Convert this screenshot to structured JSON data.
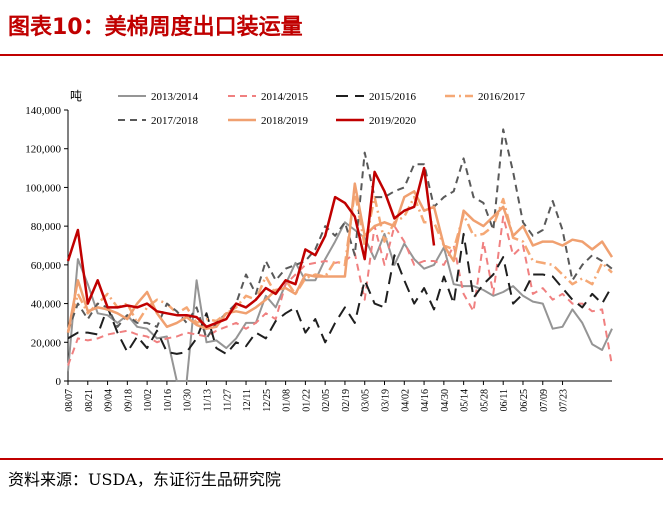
{
  "title": "图表10：美棉周度出口装运量",
  "source": "资料来源：USDA，东证衍生品研究院",
  "chart_data": {
    "type": "line",
    "unit": "吨",
    "ylim": [
      0,
      140000
    ],
    "yticks": [
      0,
      20000,
      40000,
      60000,
      80000,
      100000,
      120000,
      140000
    ],
    "ytick_labels": [
      "0",
      "20,000",
      "40,000",
      "60,000",
      "80,000",
      "100,000",
      "120,000",
      "140,000"
    ],
    "x_tick_labels": [
      "08/07",
      "08/21",
      "09/04",
      "09/18",
      "10/02",
      "10/16",
      "10/30",
      "11/13",
      "11/27",
      "12/11",
      "12/25",
      "01/08",
      "01/22",
      "02/05",
      "02/19",
      "03/05",
      "03/19",
      "04/02",
      "04/16",
      "04/30",
      "05/14",
      "05/28",
      "06/11",
      "06/25",
      "07/09",
      "07/23"
    ],
    "grid": false,
    "legend_position": "top",
    "series": [
      {
        "name": "2013/2014",
        "color": "#959595",
        "dash": "solid",
        "values": [
          5000,
          63000,
          50000,
          35000,
          34000,
          30000,
          34000,
          28000,
          27000,
          22000,
          23000,
          0,
          0,
          52000,
          20000,
          21000,
          17000,
          22000,
          30000,
          30000,
          44000,
          38000,
          50000,
          61000,
          52000,
          52000,
          63000,
          72000,
          82000,
          78000,
          74000,
          63000,
          76000,
          60000,
          71000,
          63000,
          58000,
          60000,
          69000,
          50000,
          49000,
          49000,
          47000,
          44000,
          46000,
          49000,
          44000,
          41000,
          40000,
          27000,
          28000,
          37000,
          30000,
          19000,
          16000,
          27000
        ]
      },
      {
        "name": "2014/2015",
        "color": "#f08080",
        "dash": "dash",
        "values": [
          8000,
          22000,
          21000,
          22000,
          24000,
          25000,
          26000,
          24000,
          23000,
          20000,
          22000,
          23000,
          25000,
          24000,
          23000,
          26000,
          28000,
          30000,
          27000,
          30000,
          35000,
          32000,
          50000,
          55000,
          60000,
          61000,
          62000,
          61000,
          62000,
          66000,
          42000,
          80000,
          60000,
          80000,
          72000,
          60000,
          62000,
          62000,
          60000,
          70000,
          45000,
          36000,
          72000,
          45000,
          85000,
          65000,
          70000,
          45000,
          48000,
          42000,
          45000,
          40000,
          40000,
          36000,
          37000,
          8000
        ]
      },
      {
        "name": "2015/2016",
        "color": "#1f1f1f",
        "dash": "longdash",
        "values": [
          22000,
          25000,
          25000,
          24000,
          38000,
          25000,
          15000,
          23000,
          17000,
          26000,
          15000,
          14000,
          15000,
          22000,
          35000,
          17000,
          14000,
          20000,
          18000,
          25000,
          22000,
          31000,
          35000,
          38000,
          25000,
          32000,
          20000,
          30000,
          38000,
          30000,
          52000,
          40000,
          38000,
          65000,
          52000,
          40000,
          48000,
          37000,
          54000,
          40000,
          76000,
          43000,
          50000,
          55000,
          64000,
          40000,
          45000,
          55000,
          55000,
          54000,
          48000,
          42000,
          38000,
          45000,
          40000,
          49000
        ]
      },
      {
        "name": "2016/2017",
        "color": "#f5a875",
        "dash": "dashdot",
        "values": [
          25000,
          45000,
          35000,
          40000,
          45000,
          38000,
          40000,
          30000,
          38000,
          42000,
          40000,
          35000,
          38000,
          30000,
          32000,
          31000,
          35000,
          38000,
          44000,
          42000,
          54000,
          45000,
          52000,
          45000,
          53000,
          55000,
          54000,
          62000,
          60000,
          98000,
          70000,
          95000,
          72000,
          82000,
          85000,
          95000,
          82000,
          82000,
          70000,
          68000,
          86000,
          75000,
          76000,
          80000,
          94000,
          74000,
          72000,
          62000,
          61000,
          60000,
          55000,
          50000,
          53000,
          50000,
          61000,
          56000
        ]
      },
      {
        "name": "2017/2018",
        "color": "#595959",
        "dash": "dash",
        "values": [
          26000,
          40000,
          32000,
          40000,
          38000,
          28000,
          34000,
          30000,
          30000,
          28000,
          40000,
          36000,
          30000,
          38000,
          22000,
          30000,
          35000,
          40000,
          55000,
          45000,
          62000,
          52000,
          58000,
          60000,
          62000,
          68000,
          80000,
          75000,
          82000,
          65000,
          118000,
          95000,
          95000,
          98000,
          100000,
          112000,
          112000,
          90000,
          95000,
          98000,
          115000,
          95000,
          92000,
          78000,
          130000,
          108000,
          82000,
          75000,
          78000,
          93000,
          78000,
          52000,
          60000,
          65000,
          62000,
          58000
        ]
      },
      {
        "name": "2018/2019",
        "color": "#f0a070",
        "dash": "solid",
        "values": [
          25000,
          52000,
          36000,
          38000,
          37000,
          35000,
          32000,
          40000,
          46000,
          35000,
          28000,
          30000,
          33000,
          29000,
          27000,
          28000,
          35000,
          36000,
          35000,
          38000,
          42000,
          47000,
          48000,
          45000,
          55000,
          54000,
          54000,
          54000,
          54000,
          102000,
          75000,
          80000,
          82000,
          80000,
          95000,
          98000,
          88000,
          90000,
          70000,
          62000,
          88000,
          83000,
          80000,
          85000,
          90000,
          75000,
          80000,
          70000,
          72000,
          72000,
          70000,
          73000,
          72000,
          68000,
          72000,
          64000
        ]
      },
      {
        "name": "2019/2020",
        "color": "#c00000",
        "dash": "solid",
        "values": [
          62000,
          78000,
          40000,
          52000,
          38000,
          38000,
          39000,
          38000,
          40000,
          36000,
          35000,
          34000,
          34000,
          33000,
          28000,
          30000,
          32000,
          40000,
          38000,
          42000,
          48000,
          45000,
          52000,
          50000,
          68000,
          65000,
          75000,
          95000,
          92000,
          85000,
          63000,
          108000,
          98000,
          84000,
          88000,
          90000,
          110000,
          70000
        ]
      }
    ]
  }
}
